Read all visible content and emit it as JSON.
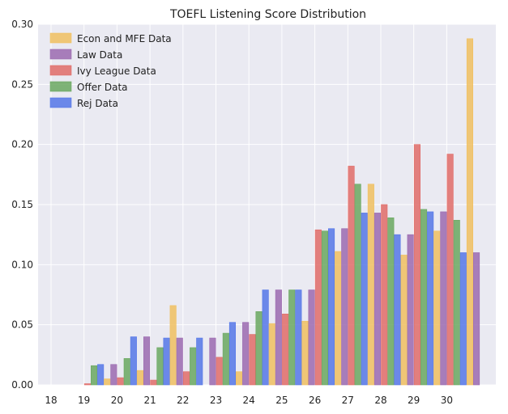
{
  "chart_data": {
    "type": "bar",
    "title": "TOEFL Listening Score Distribution",
    "xlabel": "",
    "ylabel": "",
    "categories": [
      "18",
      "19",
      "20",
      "21",
      "22",
      "23",
      "24",
      "25",
      "26",
      "27",
      "28",
      "29",
      "30"
    ],
    "ylim": [
      0,
      0.3
    ],
    "yticks": [
      "0.00",
      "0.05",
      "0.10",
      "0.15",
      "0.20",
      "0.25",
      "0.30"
    ],
    "grid": true,
    "legend_position": "top-left",
    "series": [
      {
        "name": "Econ and MFE Data",
        "color": "#f0c060",
        "values": [
          0.0,
          0.005,
          0.012,
          0.066,
          0.0,
          0.011,
          0.051,
          0.053,
          0.111,
          0.167,
          0.108,
          0.128,
          0.288
        ]
      },
      {
        "name": "Law Data",
        "color": "#9b6ab0",
        "values": [
          0.0,
          0.017,
          0.04,
          0.039,
          0.039,
          0.052,
          0.079,
          0.079,
          0.13,
          0.143,
          0.125,
          0.144,
          0.11
        ]
      },
      {
        "name": "Ivy League Data",
        "color": "#e06c68",
        "values": [
          0.0,
          0.001,
          0.006,
          0.004,
          0.011,
          0.023,
          0.042,
          0.059,
          0.129,
          0.182,
          0.15,
          0.2,
          0.192
        ]
      },
      {
        "name": "Offer Data",
        "color": "#6aa860",
        "values": [
          0.0,
          0.016,
          0.022,
          0.031,
          0.031,
          0.043,
          0.061,
          0.079,
          0.128,
          0.167,
          0.139,
          0.146,
          0.137
        ]
      },
      {
        "name": "Rej Data",
        "color": "#5577e8",
        "values": [
          0.0,
          0.017,
          0.04,
          0.039,
          0.039,
          0.052,
          0.079,
          0.079,
          0.13,
          0.143,
          0.125,
          0.144,
          0.11
        ]
      }
    ],
    "series_order_in_group": [
      2,
      3,
      4,
      0,
      1
    ]
  }
}
